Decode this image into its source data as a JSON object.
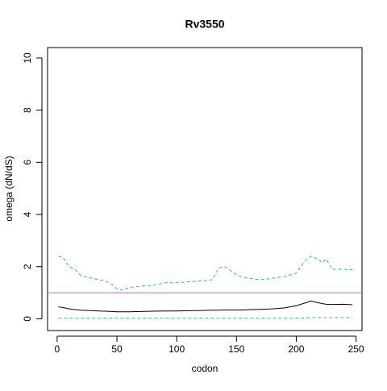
{
  "chart_data": {
    "type": "line",
    "title": "Rv3550",
    "x_label": "codon",
    "y_label": "omega (dN/dS)",
    "x": [
      1,
      5,
      10,
      15,
      20,
      30,
      40,
      45,
      50,
      55,
      60,
      70,
      80,
      90,
      100,
      110,
      120,
      130,
      135,
      140,
      145,
      150,
      155,
      160,
      170,
      180,
      190,
      200,
      207,
      212,
      218,
      222,
      225,
      230,
      240,
      247
    ],
    "series": [
      {
        "color": "#000000",
        "dashed": false,
        "values": [
          0.46,
          0.43,
          0.38,
          0.35,
          0.33,
          0.31,
          0.29,
          0.28,
          0.27,
          0.27,
          0.27,
          0.28,
          0.29,
          0.3,
          0.3,
          0.31,
          0.32,
          0.33,
          0.33,
          0.34,
          0.34,
          0.34,
          0.34,
          0.35,
          0.36,
          0.38,
          0.42,
          0.5,
          0.6,
          0.68,
          0.62,
          0.58,
          0.56,
          0.55,
          0.56,
          0.54
        ]
      },
      {
        "color": "#3aa6dd",
        "dashed": true,
        "values": [
          2.4,
          2.35,
          2.0,
          1.9,
          1.65,
          1.55,
          1.45,
          1.35,
          1.15,
          1.1,
          1.2,
          1.25,
          1.28,
          1.38,
          1.38,
          1.42,
          1.45,
          1.5,
          1.95,
          2.0,
          1.85,
          1.7,
          1.6,
          1.55,
          1.5,
          1.55,
          1.62,
          1.75,
          2.2,
          2.4,
          2.3,
          2.15,
          2.3,
          1.9,
          1.9,
          1.88
        ]
      },
      {
        "color": "#3aa6dd",
        "dashed": true,
        "values": [
          0.02,
          0.02,
          0.02,
          0.02,
          0.02,
          0.02,
          0.02,
          0.02,
          0.02,
          0.02,
          0.02,
          0.02,
          0.02,
          0.02,
          0.02,
          0.02,
          0.02,
          0.02,
          0.02,
          0.02,
          0.02,
          0.02,
          0.02,
          0.02,
          0.02,
          0.02,
          0.02,
          0.02,
          0.03,
          0.05,
          0.05,
          0.05,
          0.05,
          0.05,
          0.05,
          0.05
        ]
      }
    ],
    "reference_line": {
      "value": 1,
      "color": "#cc66cc"
    },
    "xlim": [
      -8,
      255
    ],
    "xticks": [
      0,
      50,
      100,
      150,
      200,
      250
    ],
    "ylim": [
      -0.45,
      10.4
    ],
    "yticks": [
      0,
      2,
      4,
      6,
      8,
      10
    ]
  }
}
